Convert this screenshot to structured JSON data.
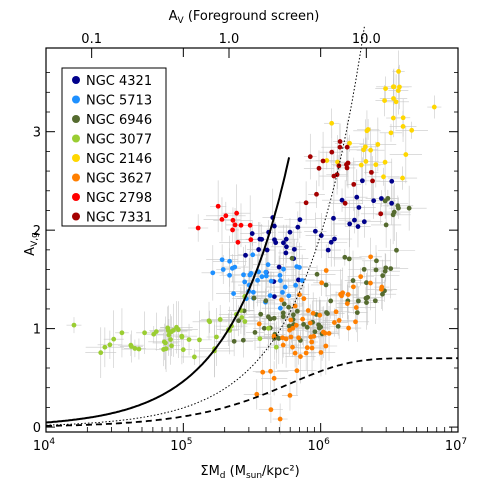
{
  "chart_data": {
    "type": "scatter",
    "xlabel": "ΣM_d (M_sun/kpc²)",
    "xlabel_parts": {
      "main": "ΣM",
      "sub": "d",
      "unit_open": " (M",
      "unit_sub": "sun",
      "unit_close": "/kpc²)"
    },
    "ylabel": "A_V,g",
    "ylabel_parts": {
      "main": "A",
      "sub": "V,g"
    },
    "top_axis_label": "A_V (Foreground screen)",
    "top_axis_parts": {
      "main": "A",
      "sub": "V",
      "rest": " (Foreground screen)"
    },
    "xscale": "log",
    "xlim": [
      10000,
      10000000
    ],
    "ylim": [
      -0.05,
      3.85
    ],
    "x_ticks": [
      {
        "value": 10000,
        "base": "10",
        "exp": "4"
      },
      {
        "value": 100000,
        "base": "10",
        "exp": "5"
      },
      {
        "value": 1000000,
        "base": "10",
        "exp": "6"
      },
      {
        "value": 10000000,
        "base": "10",
        "exp": "7"
      }
    ],
    "y_ticks": [
      {
        "value": 0,
        "label": "0"
      },
      {
        "value": 1,
        "label": "1"
      },
      {
        "value": 2,
        "label": "2"
      },
      {
        "value": 3,
        "label": "3"
      }
    ],
    "top_ticks": [
      {
        "sigma": 21500,
        "label": "0.1"
      },
      {
        "sigma": 215000,
        "label": "1.0"
      },
      {
        "sigma": 2150000,
        "label": "10.0"
      }
    ],
    "legend_position": "top-left",
    "series": [
      {
        "name": "NGC 4321",
        "color": "#00008b",
        "clusters": [
          {
            "cx": 5.7,
            "cy": 1.85,
            "sx": 0.12,
            "sy": 0.2,
            "n": 25
          },
          {
            "cx": 6.2,
            "cy": 2.0,
            "sx": 0.12,
            "sy": 0.15,
            "n": 12
          },
          {
            "cx": 6.4,
            "cy": 2.35,
            "sx": 0.08,
            "sy": 0.1,
            "n": 6
          }
        ]
      },
      {
        "name": "NGC 5713",
        "color": "#1e90ff",
        "clusters": [
          {
            "cx": 5.6,
            "cy": 1.45,
            "sx": 0.15,
            "sy": 0.12,
            "n": 30
          },
          {
            "cx": 5.35,
            "cy": 1.58,
            "sx": 0.12,
            "sy": 0.08,
            "n": 8
          }
        ]
      },
      {
        "name": "NGC 6946",
        "color": "#556b2f",
        "clusters": [
          {
            "cx": 5.75,
            "cy": 1.05,
            "sx": 0.2,
            "sy": 0.12,
            "n": 40
          },
          {
            "cx": 6.25,
            "cy": 1.5,
            "sx": 0.2,
            "sy": 0.2,
            "n": 25
          },
          {
            "cx": 6.55,
            "cy": 2.2,
            "sx": 0.08,
            "sy": 0.12,
            "n": 8
          }
        ]
      },
      {
        "name": "NGC 3077",
        "color": "#9acd32",
        "clusters": [
          {
            "cx": 4.9,
            "cy": 0.92,
            "sx": 0.2,
            "sy": 0.1,
            "n": 30
          },
          {
            "cx": 5.35,
            "cy": 1.05,
            "sx": 0.12,
            "sy": 0.12,
            "n": 15
          },
          {
            "cx": 4.5,
            "cy": 0.78,
            "sx": 0.12,
            "sy": 0.05,
            "n": 4
          }
        ]
      },
      {
        "name": "NGC 2146",
        "color": "#ffd700",
        "clusters": [
          {
            "cx": 6.35,
            "cy": 2.85,
            "sx": 0.15,
            "sy": 0.2,
            "n": 20
          },
          {
            "cx": 6.55,
            "cy": 3.3,
            "sx": 0.1,
            "sy": 0.18,
            "n": 12
          }
        ]
      },
      {
        "name": "NGC 3627",
        "color": "#ff7f00",
        "clusters": [
          {
            "cx": 5.9,
            "cy": 1.0,
            "sx": 0.12,
            "sy": 0.2,
            "n": 40
          },
          {
            "cx": 6.25,
            "cy": 1.4,
            "sx": 0.12,
            "sy": 0.15,
            "n": 15
          },
          {
            "cx": 5.65,
            "cy": 0.35,
            "sx": 0.08,
            "sy": 0.15,
            "n": 6
          }
        ]
      },
      {
        "name": "NGC 2798",
        "color": "#ff0000",
        "clusters": [
          {
            "cx": 5.35,
            "cy": 2.05,
            "sx": 0.15,
            "sy": 0.1,
            "n": 12
          }
        ]
      },
      {
        "name": "NGC 7331",
        "color": "#a50000",
        "clusters": [
          {
            "cx": 6.1,
            "cy": 2.55,
            "sx": 0.15,
            "sy": 0.15,
            "n": 20
          }
        ]
      }
    ],
    "curves": [
      {
        "style": "solid",
        "color": "#000000"
      },
      {
        "style": "dotted",
        "color": "#000000"
      },
      {
        "style": "dashed",
        "color": "#000000"
      }
    ]
  }
}
